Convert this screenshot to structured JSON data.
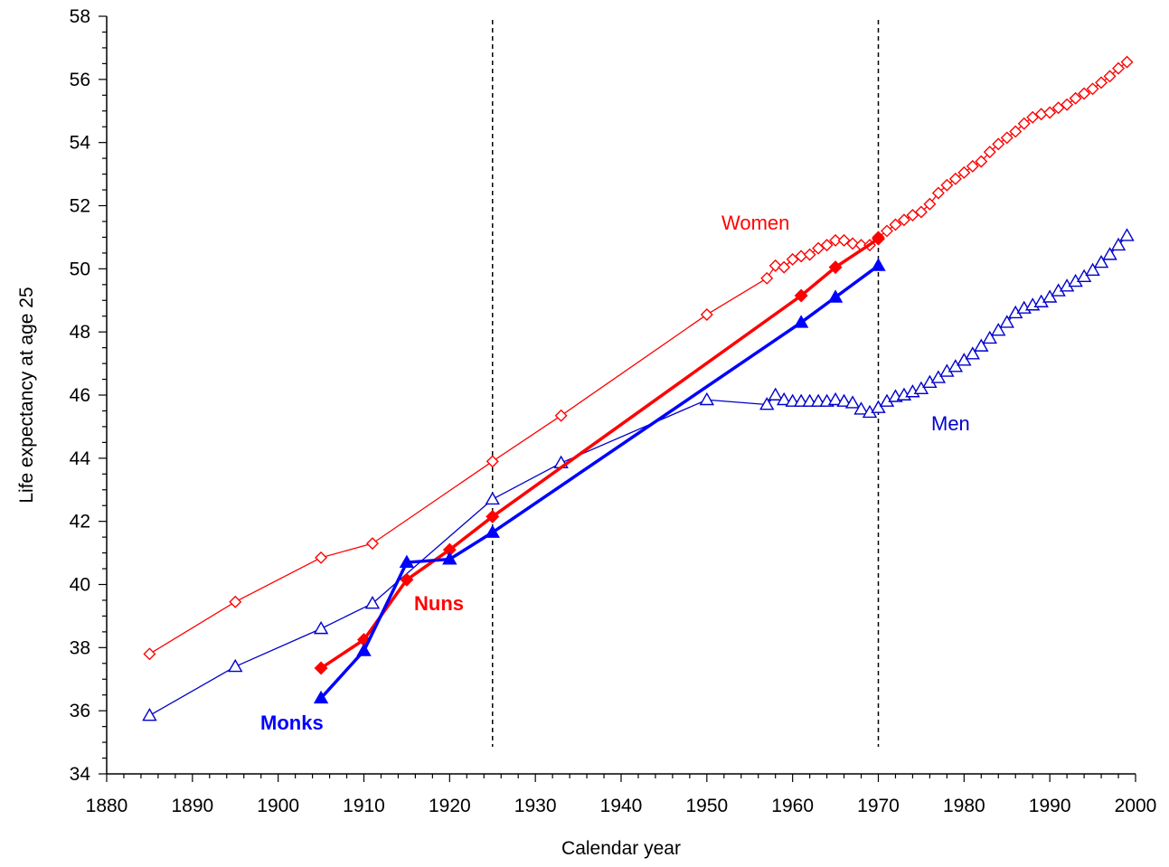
{
  "chart_data": {
    "type": "line",
    "title": "",
    "xlabel": "Calendar year",
    "ylabel": "Life expectancy at age 25",
    "xlim": [
      1880,
      2000
    ],
    "ylim": [
      34,
      58
    ],
    "xticks": [
      1880,
      1890,
      1900,
      1910,
      1920,
      1930,
      1940,
      1950,
      1960,
      1970,
      1980,
      1990,
      2000
    ],
    "yticks": [
      34,
      36,
      38,
      40,
      42,
      44,
      46,
      48,
      50,
      52,
      54,
      56,
      58
    ],
    "grid": false,
    "legend": "none (series labelled directly on the plot)",
    "reference_lines_x": [
      1925,
      1970
    ],
    "series": [
      {
        "name": "Women",
        "color": "#ff0000",
        "marker": "open-diamond",
        "line": "thin",
        "x": [
          1885,
          1895,
          1905,
          1911,
          1925,
          1933,
          1950,
          1957,
          1958,
          1959,
          1960,
          1961,
          1962,
          1963,
          1964,
          1965,
          1966,
          1967,
          1968,
          1969,
          1970,
          1971,
          1972,
          1973,
          1974,
          1975,
          1976,
          1977,
          1978,
          1979,
          1980,
          1981,
          1982,
          1983,
          1984,
          1985,
          1986,
          1987,
          1988,
          1989,
          1990,
          1991,
          1992,
          1993,
          1994,
          1995,
          1996,
          1997,
          1998,
          1999
        ],
        "y": [
          37.8,
          39.45,
          40.85,
          41.3,
          43.9,
          45.35,
          48.55,
          49.7,
          50.1,
          50.05,
          50.3,
          50.4,
          50.45,
          50.65,
          50.75,
          50.9,
          50.9,
          50.8,
          50.75,
          50.75,
          51.0,
          51.2,
          51.4,
          51.55,
          51.7,
          51.8,
          52.05,
          52.4,
          52.65,
          52.85,
          53.05,
          53.25,
          53.4,
          53.7,
          53.95,
          54.15,
          54.35,
          54.6,
          54.8,
          54.9,
          54.95,
          55.1,
          55.2,
          55.4,
          55.55,
          55.7,
          55.9,
          56.1,
          56.35,
          56.55
        ]
      },
      {
        "name": "Men",
        "color": "#0000cc",
        "marker": "open-triangle",
        "line": "thin",
        "x": [
          1885,
          1895,
          1905,
          1911,
          1925,
          1933,
          1950,
          1957,
          1958,
          1959,
          1960,
          1961,
          1962,
          1963,
          1964,
          1965,
          1966,
          1967,
          1968,
          1969,
          1970,
          1971,
          1972,
          1973,
          1974,
          1975,
          1976,
          1977,
          1978,
          1979,
          1980,
          1981,
          1982,
          1983,
          1984,
          1985,
          1986,
          1987,
          1988,
          1989,
          1990,
          1991,
          1992,
          1993,
          1994,
          1995,
          1996,
          1997,
          1998,
          1999
        ],
        "y": [
          35.85,
          37.4,
          38.6,
          39.4,
          42.7,
          43.85,
          45.85,
          45.7,
          46.0,
          45.85,
          45.8,
          45.8,
          45.8,
          45.8,
          45.8,
          45.85,
          45.8,
          45.75,
          45.55,
          45.45,
          45.6,
          45.8,
          45.95,
          46.0,
          46.1,
          46.2,
          46.4,
          46.55,
          46.75,
          46.9,
          47.1,
          47.3,
          47.55,
          47.8,
          48.05,
          48.3,
          48.6,
          48.75,
          48.85,
          48.95,
          49.1,
          49.3,
          49.45,
          49.6,
          49.75,
          49.95,
          50.2,
          50.45,
          50.75,
          51.05
        ]
      },
      {
        "name": "Nuns",
        "color": "#ff0000",
        "marker": "filled-diamond",
        "line": "thick",
        "x": [
          1905,
          1910,
          1915,
          1920,
          1925,
          1961,
          1965,
          1970
        ],
        "y": [
          37.35,
          38.25,
          40.15,
          41.1,
          42.15,
          49.15,
          50.05,
          50.95
        ]
      },
      {
        "name": "Monks",
        "color": "#0000ff",
        "marker": "filled-triangle",
        "line": "thick",
        "x": [
          1905,
          1910,
          1915,
          1920,
          1925,
          1961,
          1965,
          1970
        ],
        "y": [
          36.4,
          37.9,
          40.7,
          40.8,
          41.65,
          48.3,
          49.1,
          50.1
        ]
      }
    ]
  }
}
